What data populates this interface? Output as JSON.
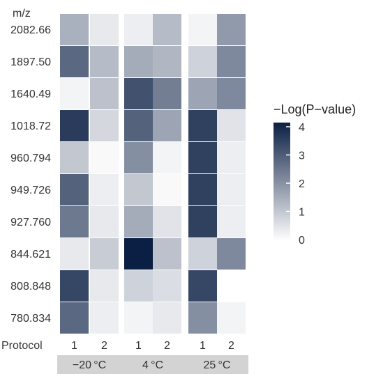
{
  "chart_data": {
    "type": "heatmap",
    "y_axis_title": "m/z",
    "x_axis_title": "Protocol",
    "rows": [
      "2082.66",
      "1897.50",
      "1640.49",
      "1018.72",
      "960.794",
      "949.726",
      "927.760",
      "844.621",
      "808.848",
      "780.834"
    ],
    "groups": [
      {
        "label": "−20 °C",
        "protocols": [
          "1",
          "2"
        ]
      },
      {
        "label": "4 °C",
        "protocols": [
          "1",
          "2"
        ]
      },
      {
        "label": "25 °C",
        "protocols": [
          "1",
          "2"
        ]
      }
    ],
    "values": [
      [
        1.4,
        0.4,
        0.3,
        1.2,
        0.2,
        1.8
      ],
      [
        2.7,
        1.2,
        1.5,
        1.3,
        0.8,
        2.1
      ],
      [
        0.2,
        1.1,
        3.1,
        2.3,
        1.6,
        2.1
      ],
      [
        3.5,
        0.7,
        2.8,
        1.6,
        3.4,
        0.5
      ],
      [
        1.0,
        0.1,
        2.0,
        0.2,
        3.4,
        0.3
      ],
      [
        2.8,
        0.3,
        1.0,
        0.1,
        3.4,
        0.3
      ],
      [
        2.4,
        0.4,
        1.5,
        0.5,
        3.4,
        0.3
      ],
      [
        0.4,
        0.9,
        4.3,
        1.1,
        0.8,
        2.1
      ],
      [
        3.3,
        0.4,
        0.8,
        0.6,
        3.3,
        0.0
      ],
      [
        2.7,
        0.3,
        0.2,
        0.4,
        2.0,
        0.2
      ]
    ],
    "legend": {
      "title": "−Log(P−value)",
      "ticks": [
        "4",
        "3",
        "2",
        "1",
        "0"
      ],
      "range": [
        0,
        4
      ],
      "colors": [
        "#ffffff",
        "#0b1f44"
      ],
      "placement": "right"
    }
  }
}
